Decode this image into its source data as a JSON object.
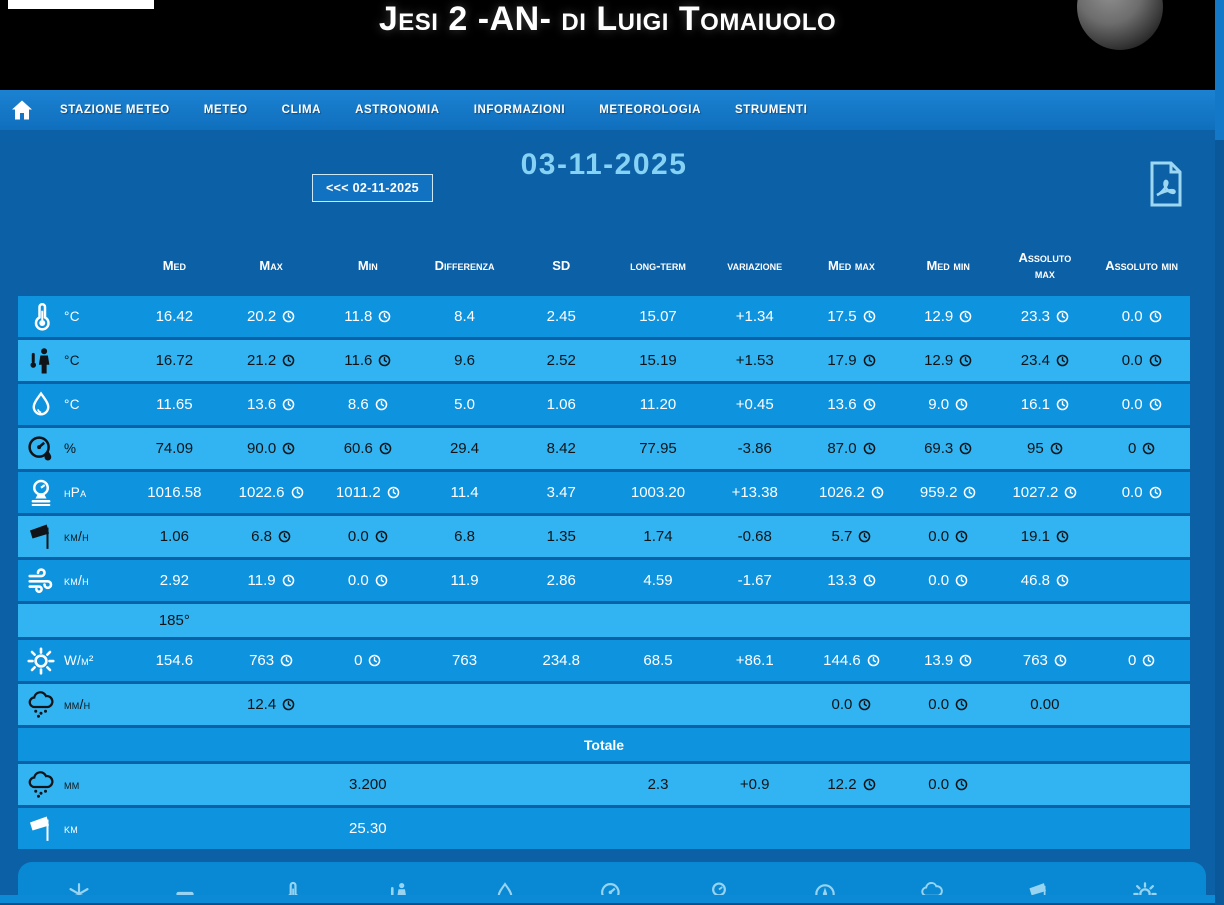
{
  "header": {
    "title": "Jesi 2 -AN- di Luigi Tomaiuolo"
  },
  "nav": {
    "items": [
      "STAZIONE METEO",
      "METEO",
      "CLIMA",
      "ASTRONOMIA",
      "INFORMAZIONI",
      "METEOROLOGIA",
      "STRUMENTI"
    ]
  },
  "toolbar": {
    "prev_button": "<<< 02-11-2025",
    "date_title": "03-11-2025",
    "pdf_icon": "pdf-download-icon"
  },
  "table": {
    "columns": [
      "Med",
      "Max",
      "Min",
      "Differenza",
      "SD",
      "long-term",
      "variazione",
      "Med max",
      "Med min",
      "Assoluto\nmax",
      "Assoluto min"
    ],
    "rows": [
      {
        "icon": "thermometer-icon",
        "unit": "°C",
        "variant": "dark",
        "cells": [
          {
            "v": "16.42"
          },
          {
            "v": "20.2",
            "clock": true
          },
          {
            "v": "11.8",
            "clock": true
          },
          {
            "v": "8.4"
          },
          {
            "v": "2.45"
          },
          {
            "v": "15.07"
          },
          {
            "v": "+1.34"
          },
          {
            "v": "17.5",
            "clock": true
          },
          {
            "v": "12.9",
            "clock": true
          },
          {
            "v": "23.3",
            "clock": true
          },
          {
            "v": "0.0",
            "clock": true
          }
        ]
      },
      {
        "icon": "person-thermometer-icon",
        "unit": "°C",
        "variant": "light",
        "cells": [
          {
            "v": "16.72"
          },
          {
            "v": "21.2",
            "clock": true
          },
          {
            "v": "11.6",
            "clock": true
          },
          {
            "v": "9.6"
          },
          {
            "v": "2.52"
          },
          {
            "v": "15.19"
          },
          {
            "v": "+1.53"
          },
          {
            "v": "17.9",
            "clock": true
          },
          {
            "v": "12.9",
            "clock": true
          },
          {
            "v": "23.4",
            "clock": true
          },
          {
            "v": "0.0",
            "clock": true
          }
        ]
      },
      {
        "icon": "droplet-icon",
        "unit": "°C",
        "variant": "dark",
        "cells": [
          {
            "v": "11.65"
          },
          {
            "v": "13.6",
            "clock": true
          },
          {
            "v": "8.6",
            "clock": true
          },
          {
            "v": "5.0"
          },
          {
            "v": "1.06"
          },
          {
            "v": "11.20"
          },
          {
            "v": "+0.45"
          },
          {
            "v": "13.6",
            "clock": true
          },
          {
            "v": "9.0",
            "clock": true
          },
          {
            "v": "16.1",
            "clock": true
          },
          {
            "v": "0.0",
            "clock": true
          }
        ]
      },
      {
        "icon": "humidity-gauge-icon",
        "unit": "%",
        "variant": "light",
        "cells": [
          {
            "v": "74.09"
          },
          {
            "v": "90.0",
            "clock": true
          },
          {
            "v": "60.6",
            "clock": true
          },
          {
            "v": "29.4"
          },
          {
            "v": "8.42"
          },
          {
            "v": "77.95"
          },
          {
            "v": "-3.86"
          },
          {
            "v": "87.0",
            "clock": true
          },
          {
            "v": "69.3",
            "clock": true
          },
          {
            "v": "95",
            "clock": true
          },
          {
            "v": "0",
            "clock": true
          }
        ]
      },
      {
        "icon": "barometer-icon",
        "unit": "hPa",
        "variant": "dark",
        "cells": [
          {
            "v": "1016.58"
          },
          {
            "v": "1022.6",
            "clock": true
          },
          {
            "v": "1011.2",
            "clock": true
          },
          {
            "v": "11.4"
          },
          {
            "v": "3.47"
          },
          {
            "v": "1003.20"
          },
          {
            "v": "+13.38"
          },
          {
            "v": "1026.2",
            "clock": true
          },
          {
            "v": "959.2",
            "clock": true
          },
          {
            "v": "1027.2",
            "clock": true
          },
          {
            "v": "0.0",
            "clock": true
          }
        ]
      },
      {
        "icon": "windsock-icon",
        "unit": "km/h",
        "variant": "light",
        "cells": [
          {
            "v": "1.06"
          },
          {
            "v": "6.8",
            "clock": true
          },
          {
            "v": "0.0",
            "clock": true
          },
          {
            "v": "6.8"
          },
          {
            "v": "1.35"
          },
          {
            "v": "1.74"
          },
          {
            "v": "-0.68"
          },
          {
            "v": "5.7",
            "clock": true
          },
          {
            "v": "0.0",
            "clock": true
          },
          {
            "v": "19.1",
            "clock": true
          },
          {
            "v": ""
          }
        ]
      },
      {
        "icon": "wind-gust-icon",
        "unit": "km/h",
        "variant": "dark",
        "cells": [
          {
            "v": "2.92"
          },
          {
            "v": "11.9",
            "clock": true
          },
          {
            "v": "0.0",
            "clock": true
          },
          {
            "v": "11.9"
          },
          {
            "v": "2.86"
          },
          {
            "v": "4.59"
          },
          {
            "v": "-1.67"
          },
          {
            "v": "13.3",
            "clock": true
          },
          {
            "v": "0.0",
            "clock": true
          },
          {
            "v": "46.8",
            "clock": true
          },
          {
            "v": ""
          }
        ]
      },
      {
        "icon": null,
        "unit": "",
        "variant": "light",
        "size": "narrow",
        "cells": [
          {
            "v": "185°"
          },
          {
            "v": ""
          },
          {
            "v": ""
          },
          {
            "v": ""
          },
          {
            "v": ""
          },
          {
            "v": ""
          },
          {
            "v": ""
          },
          {
            "v": ""
          },
          {
            "v": ""
          },
          {
            "v": ""
          },
          {
            "v": ""
          }
        ]
      },
      {
        "icon": "sun-icon",
        "unit": "W/m²",
        "variant": "dark",
        "cells": [
          {
            "v": "154.6"
          },
          {
            "v": "763",
            "clock": true
          },
          {
            "v": "0",
            "clock": true
          },
          {
            "v": "763"
          },
          {
            "v": "234.8"
          },
          {
            "v": "68.5"
          },
          {
            "v": "+86.1"
          },
          {
            "v": "144.6",
            "clock": true
          },
          {
            "v": "13.9",
            "clock": true
          },
          {
            "v": "763",
            "clock": true
          },
          {
            "v": "0",
            "clock": true
          }
        ]
      },
      {
        "icon": "rain-icon",
        "unit": "mm/h",
        "variant": "light",
        "cells": [
          {
            "v": ""
          },
          {
            "v": "12.4",
            "clock": true
          },
          {
            "v": ""
          },
          {
            "v": ""
          },
          {
            "v": ""
          },
          {
            "v": ""
          },
          {
            "v": ""
          },
          {
            "v": "0.0",
            "clock": true
          },
          {
            "v": "0.0",
            "clock": true
          },
          {
            "v": "0.00"
          },
          {
            "v": ""
          }
        ]
      },
      {
        "type": "section",
        "label": "Totale",
        "variant": "dark",
        "size": "narrow"
      },
      {
        "icon": "rain-icon",
        "unit": "mm",
        "variant": "light",
        "cells": [
          {
            "v": ""
          },
          {
            "v": ""
          },
          {
            "v": "3.200"
          },
          {
            "v": ""
          },
          {
            "v": ""
          },
          {
            "v": "2.3"
          },
          {
            "v": "+0.9"
          },
          {
            "v": "12.2",
            "clock": true
          },
          {
            "v": "0.0",
            "clock": true
          },
          {
            "v": ""
          },
          {
            "v": ""
          }
        ]
      },
      {
        "icon": "windsock-icon",
        "unit": "km",
        "variant": "dark",
        "cells": [
          {
            "v": ""
          },
          {
            "v": ""
          },
          {
            "v": "25.30"
          },
          {
            "v": ""
          },
          {
            "v": ""
          },
          {
            "v": ""
          },
          {
            "v": ""
          },
          {
            "v": ""
          },
          {
            "v": ""
          },
          {
            "v": ""
          },
          {
            "v": ""
          }
        ]
      }
    ]
  },
  "bottom_panel": {
    "icons": [
      "snowflake-icon",
      "bar-icon",
      "thermometer-icon",
      "person-thermometer-icon",
      "droplet-icon",
      "humidity-gauge-icon",
      "barometer-icon",
      "compass-icon",
      "rain-icon",
      "windsock-icon",
      "sun-icon"
    ]
  },
  "colors": {
    "header_bg": "#000000",
    "nav_blue": "#1478c8",
    "page_bg": "#0c60a6",
    "row_dark": "#0e93de",
    "row_light": "#31b4f1",
    "date_text": "#85d2f4",
    "panel_blue": "#0989d3",
    "strip_blue": "#0d8ad5"
  }
}
